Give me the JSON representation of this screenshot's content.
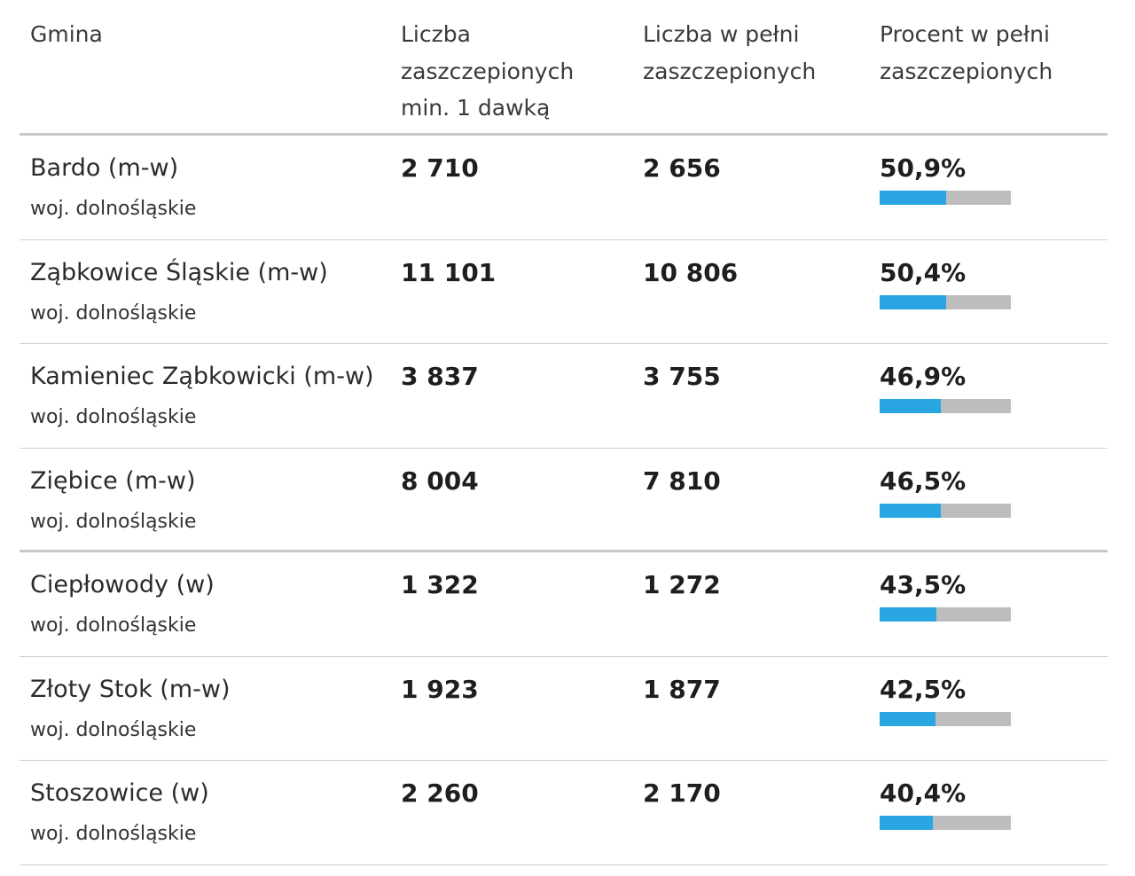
{
  "header": {
    "col_name": "Gmina",
    "col_dose1": "Liczba\nzaszczepionych\nmin. 1 dawką",
    "col_full": "Liczba w pełni\nzaszczepionych",
    "col_pct": "Procent w pełni\nzaszczepionych"
  },
  "colors": {
    "bar_fill": "#29a6e1",
    "bar_track": "#bdbdbd"
  },
  "rows": [
    {
      "name": "Bardo (m-w)",
      "region": "woj. dolnośląskie",
      "dose1": "2 710",
      "full": "2 656",
      "pct_label": "50,9%",
      "pct": 50.9
    },
    {
      "name": "Ząbkowice Śląskie (m-w)",
      "region": "woj. dolnośląskie",
      "dose1": "11 101",
      "full": "10 806",
      "pct_label": "50,4%",
      "pct": 50.4
    },
    {
      "name": "Kamieniec Ząbkowicki (m-w)",
      "region": "woj. dolnośląskie",
      "dose1": "3 837",
      "full": "3 755",
      "pct_label": "46,9%",
      "pct": 46.9
    },
    {
      "name": "Ziębice (m-w)",
      "region": "woj. dolnośląskie",
      "dose1": "8 004",
      "full": "7 810",
      "pct_label": "46,5%",
      "pct": 46.5
    },
    {
      "name": "Ciepłowody (w)",
      "region": "woj. dolnośląskie",
      "dose1": "1 322",
      "full": "1 272",
      "pct_label": "43,5%",
      "pct": 43.5
    },
    {
      "name": "Złoty Stok (m-w)",
      "region": "woj. dolnośląskie",
      "dose1": "1 923",
      "full": "1 877",
      "pct_label": "42,5%",
      "pct": 42.5
    },
    {
      "name": "Stoszowice (w)",
      "region": "woj. dolnośląskie",
      "dose1": "2 260",
      "full": "2 170",
      "pct_label": "40,4%",
      "pct": 40.4
    }
  ]
}
